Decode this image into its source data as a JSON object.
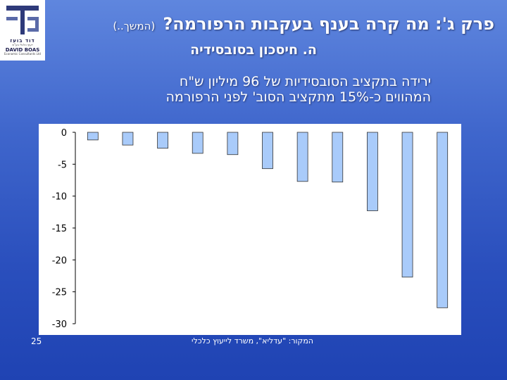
{
  "header": {
    "title": "פרק ג': מה קרה בענף בעקבות הרפורמה?",
    "title_cont": "(המשך..)",
    "subtitle": "ה. חיסכון בסובסידיה",
    "desc_line1": "ירידה בתקציב הסובסידיות של 96 מיליון ש\"ח",
    "desc_line2": "המהווים כ-15% מתקציב הסוב' לפני הרפורמה"
  },
  "logo": {
    "name_he": "דוד בועז",
    "sub_he": "ייעוץ כלכלי בע\"מ",
    "name_en": "DAVID BOAS",
    "sub_en": "Economic Consultants Ltd"
  },
  "footer": {
    "page_number": "25",
    "source": "המקור: \"עדליא\", משרד לייעוץ כלכלי"
  },
  "colors": {
    "bar_fill": "#a9cbfa",
    "bar_stroke": "#333333",
    "plot_background": "#ffffff"
  },
  "chart_data": {
    "type": "bar",
    "title": "",
    "xlabel": "",
    "ylabel": "",
    "categories": [
      "",
      "",
      "",
      "",
      "",
      "",
      "",
      "",
      "",
      "",
      ""
    ],
    "values": [
      -1.2,
      -2.0,
      -2.5,
      -3.3,
      -3.5,
      -5.7,
      -7.7,
      -7.8,
      -12.3,
      -22.7,
      -27.5
    ],
    "ylim": [
      -30,
      0
    ],
    "yticks": [
      0,
      -5,
      -10,
      -15,
      -20,
      -25,
      -30
    ],
    "grid": false,
    "legend": "none"
  }
}
